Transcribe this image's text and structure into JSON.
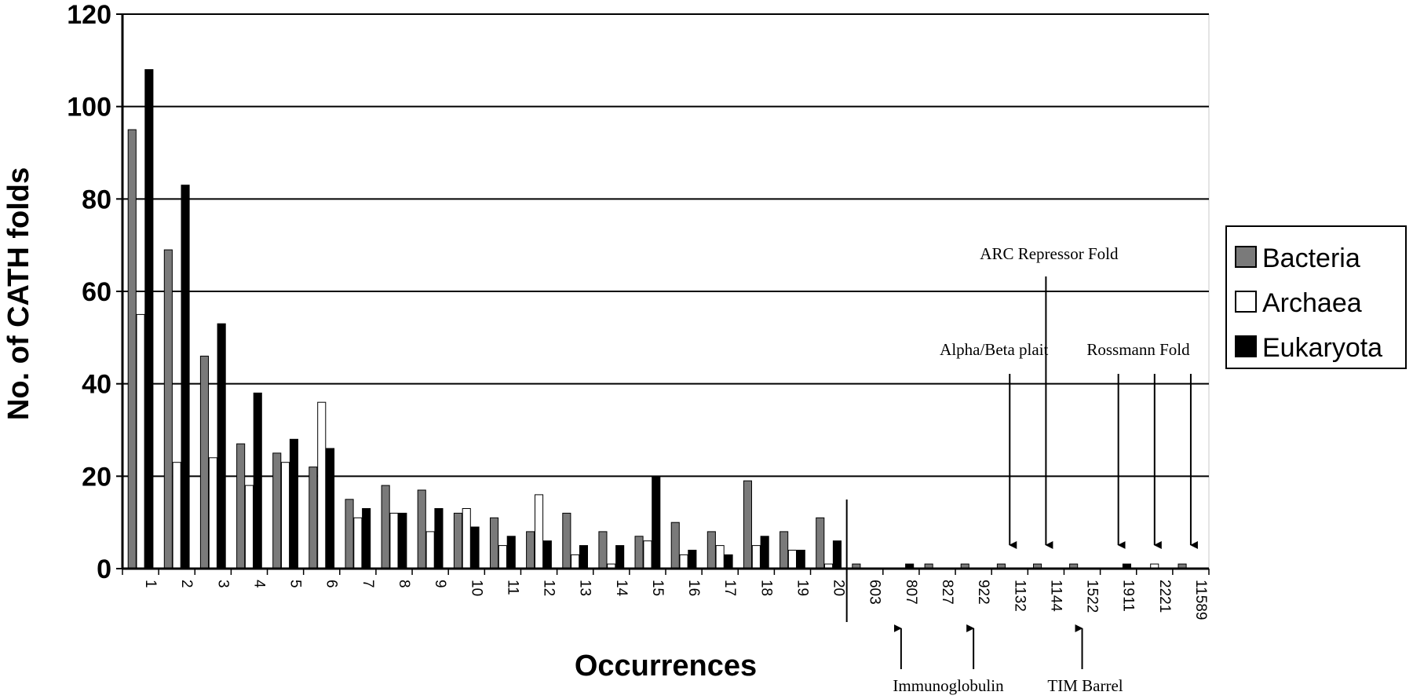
{
  "chart_data": {
    "type": "bar",
    "xlabel": "Occurrences",
    "ylabel": "No. of CATH folds",
    "ylim": [
      0,
      120
    ],
    "yticks": [
      0,
      20,
      40,
      60,
      80,
      100,
      120
    ],
    "grid": true,
    "legend_position": "right",
    "categories": [
      "1",
      "2",
      "3",
      "4",
      "5",
      "6",
      "7",
      "8",
      "9",
      "10",
      "11",
      "12",
      "13",
      "14",
      "15",
      "16",
      "17",
      "18",
      "19",
      "20",
      "603",
      "807",
      "827",
      "922",
      "1132",
      "1144",
      "1522",
      "1911",
      "2221",
      "11589"
    ],
    "series": [
      {
        "name": "Bacteria",
        "color": "#7a7a7a",
        "values": [
          95,
          69,
          46,
          27,
          25,
          22,
          15,
          18,
          17,
          12,
          11,
          8,
          12,
          8,
          7,
          10,
          8,
          19,
          8,
          11,
          1,
          0,
          1,
          1,
          1,
          1,
          1,
          0,
          0,
          1
        ]
      },
      {
        "name": "Archaea",
        "color": "#ffffff",
        "values": [
          55,
          23,
          24,
          18,
          23,
          36,
          11,
          12,
          8,
          13,
          5,
          16,
          3,
          1,
          6,
          3,
          5,
          5,
          4,
          1,
          0,
          0,
          0,
          0,
          0,
          0,
          0,
          0,
          1,
          0
        ]
      },
      {
        "name": "Eukaryota",
        "color": "#000000",
        "values": [
          108,
          83,
          53,
          38,
          28,
          26,
          13,
          12,
          13,
          9,
          7,
          6,
          5,
          5,
          20,
          4,
          3,
          7,
          4,
          6,
          0,
          1,
          0,
          0,
          0,
          0,
          0,
          1,
          0,
          0
        ]
      }
    ],
    "annotations": [
      {
        "text": "ARC Repressor Fold",
        "category": "1144",
        "side": "top"
      },
      {
        "text": "Alpha/Beta plait",
        "category": "1132",
        "side": "top"
      },
      {
        "text": "Rossmann Fold",
        "categories": [
          "1911",
          "2221",
          "11589"
        ],
        "side": "top"
      },
      {
        "text": "Immunoglobulin",
        "categories": [
          "807",
          "922"
        ],
        "side": "bottom"
      },
      {
        "text": "TIM Barrel",
        "category": "1522",
        "side": "bottom"
      }
    ]
  }
}
